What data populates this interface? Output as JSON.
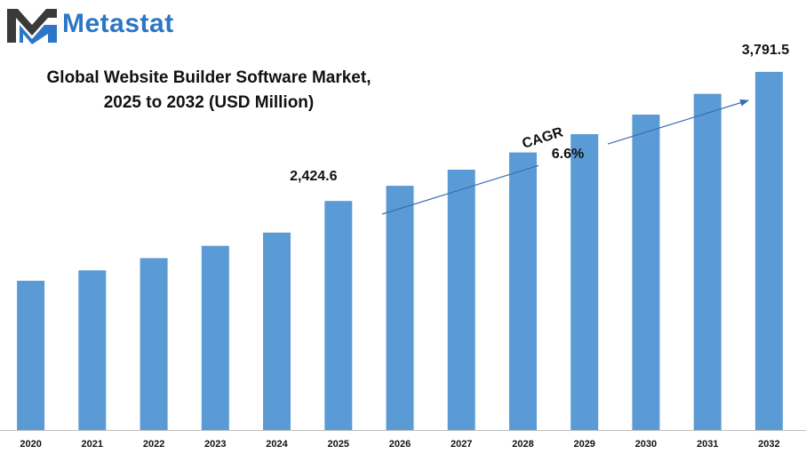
{
  "brand": {
    "name": "Metastat",
    "color": "#2b77c6",
    "logo_icon": "metastat-m-logo-icon"
  },
  "chart_data": {
    "type": "bar",
    "title_lines": [
      "Global Website Builder Software Market,",
      "2025 to 2032 (USD Million)"
    ],
    "categories": [
      "2020",
      "2021",
      "2022",
      "2023",
      "2024",
      "2025",
      "2026",
      "2027",
      "2028",
      "2029",
      "2030",
      "2031",
      "2032"
    ],
    "values": [
      1580,
      1690,
      1820,
      1950,
      2090,
      2424.6,
      2585,
      2756,
      2938,
      3132,
      3339,
      3559,
      3791.5
    ],
    "bar_color": "#5b9bd5",
    "ylim": [
      0,
      3950
    ],
    "grid": false,
    "legend": "none",
    "annotations": {
      "start_label": "2,424.6",
      "start_category": "2025",
      "end_label": "3,791.5",
      "end_category": "2032",
      "cagr_label": "CAGR",
      "cagr_value": "6.6%",
      "arrow_color": "#3a6fb0"
    }
  }
}
